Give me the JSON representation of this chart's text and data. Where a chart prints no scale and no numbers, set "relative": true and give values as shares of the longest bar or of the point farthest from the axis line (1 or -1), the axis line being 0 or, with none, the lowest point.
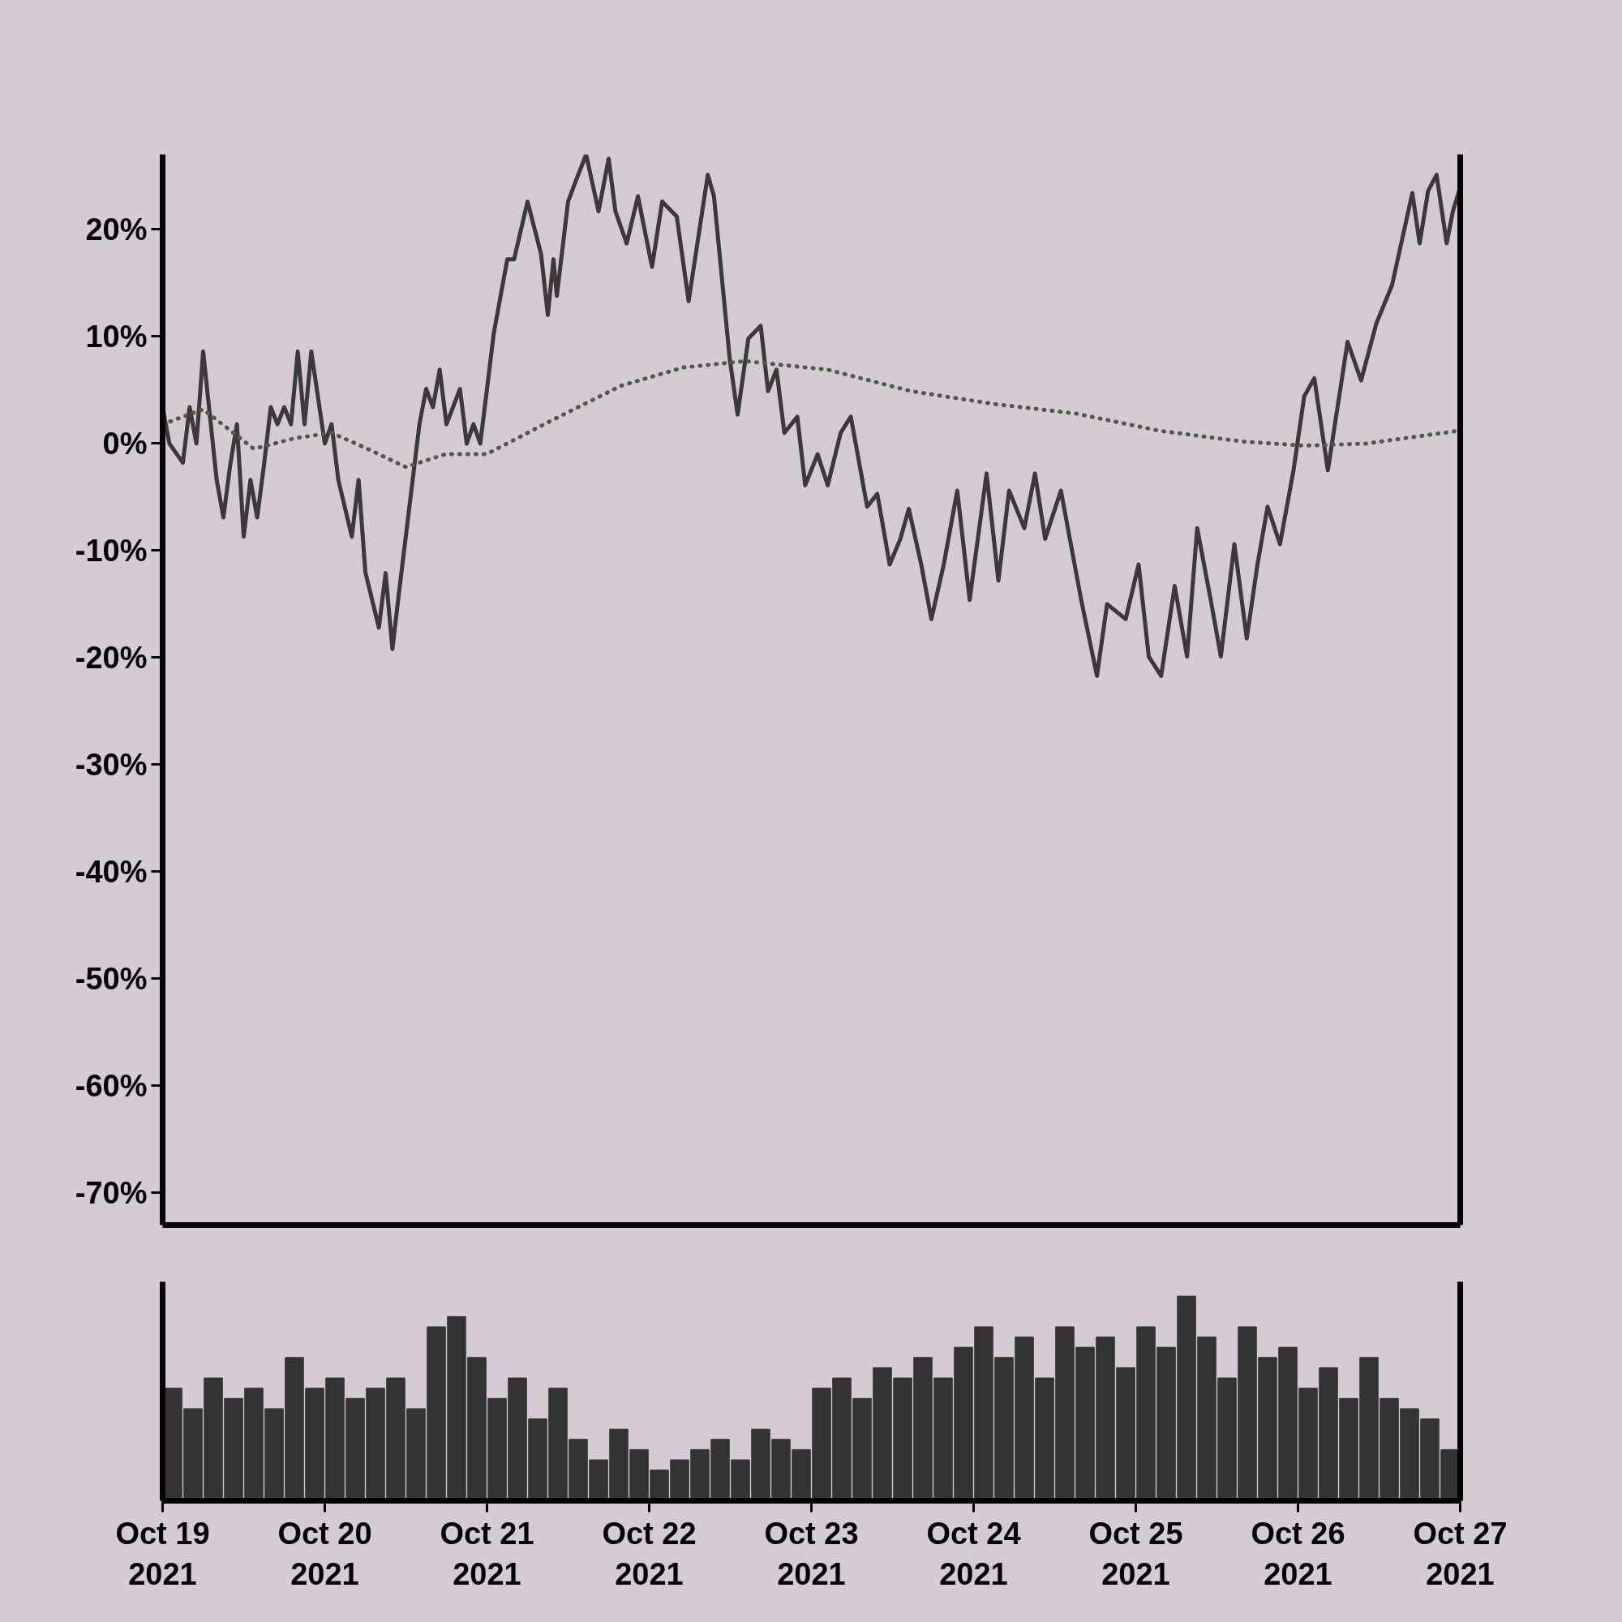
{
  "chart_data": [
    {
      "type": "line",
      "xlim": [
        "2021-10-19",
        "2021-10-27"
      ],
      "ylim": [
        -73,
        27
      ],
      "yticks": [
        {
          "value": 20,
          "label": "20%"
        },
        {
          "value": 10,
          "label": "10%"
        },
        {
          "value": 0,
          "label": "0%"
        },
        {
          "value": -10,
          "label": "-10%"
        },
        {
          "value": -20,
          "label": "-20%"
        },
        {
          "value": -30,
          "label": "-30%"
        },
        {
          "value": -40,
          "label": "-40%"
        },
        {
          "value": -50,
          "label": "-50%"
        },
        {
          "value": -60,
          "label": "-60%"
        },
        {
          "value": -70,
          "label": "-70%"
        }
      ],
      "tick_labels": "y",
      "grid": false,
      "series": [
        {
          "color": "#3a3a3a",
          "line_style": "solid",
          "x": [
            "2021-10-19T00:00",
            "2021-10-19T01:00",
            "2021-10-19T03:00",
            "2021-10-19T04:00",
            "2021-10-19T05:00",
            "2021-10-19T06:00",
            "2021-10-19T08:00",
            "2021-10-19T09:00",
            "2021-10-19T10:00",
            "2021-10-19T11:00",
            "2021-10-19T12:00",
            "2021-10-19T13:00",
            "2021-10-19T14:00",
            "2021-10-19T15:00",
            "2021-10-19T16:00",
            "2021-10-19T17:00",
            "2021-10-19T18:00",
            "2021-10-19T19:00",
            "2021-10-19T20:00",
            "2021-10-19T21:00",
            "2021-10-19T22:00",
            "2021-10-20T00:00",
            "2021-10-20T01:00",
            "2021-10-20T02:00",
            "2021-10-20T04:00",
            "2021-10-20T05:00",
            "2021-10-20T06:00",
            "2021-10-20T08:00",
            "2021-10-20T09:00",
            "2021-10-20T10:00",
            "2021-10-20T11:00",
            "2021-10-20T14:00",
            "2021-10-20T15:00",
            "2021-10-20T16:00",
            "2021-10-20T17:00",
            "2021-10-20T18:00",
            "2021-10-20T20:00",
            "2021-10-20T21:00",
            "2021-10-20T22:00",
            "2021-10-20T23:00",
            "2021-10-21T00:00",
            "2021-10-21T01:00",
            "2021-10-21T03:00",
            "2021-10-21T04:00",
            "2021-10-21T06:00",
            "2021-10-21T08:00",
            "2021-10-21T09:00",
            "2021-10-21T09:50",
            "2021-10-21T10:20",
            "2021-10-21T12:00",
            "2021-10-21T13:00",
            "2021-10-21T14:40",
            "2021-10-21T16:30",
            "2021-10-21T18:00",
            "2021-10-21T19:00",
            "2021-10-21T20:40",
            "2021-10-21T22:20",
            "2021-10-22T00:25",
            "2021-10-22T01:55",
            "2021-10-22T04:05",
            "2021-10-22T05:50",
            "2021-10-22T08:40",
            "2021-10-22T09:35",
            "2021-10-22T11:55",
            "2021-10-22T13:05",
            "2021-10-22T14:40",
            "2021-10-22T16:30",
            "2021-10-22T17:35",
            "2021-10-22T18:50",
            "2021-10-22T20:00",
            "2021-10-22T21:55",
            "2021-10-22T23:05",
            "2021-10-23T00:55",
            "2021-10-23T02:25",
            "2021-10-23T04:20",
            "2021-10-23T05:50",
            "2021-10-23T08:15",
            "2021-10-23T09:45",
            "2021-10-23T11:35",
            "2021-10-23T13:10",
            "2021-10-23T14:25",
            "2021-10-23T16:15",
            "2021-10-23T17:45",
            "2021-10-23T19:35",
            "2021-10-23T21:35",
            "2021-10-23T23:25",
            "2021-10-24T01:55",
            "2021-10-24T03:40",
            "2021-10-24T05:15",
            "2021-10-24T07:30",
            "2021-10-24T09:05",
            "2021-10-24T10:35",
            "2021-10-24T12:55",
            "2021-10-24T15:55",
            "2021-10-24T18:15",
            "2021-10-24T19:45",
            "2021-10-24T22:30",
            "2021-10-25T00:25",
            "2021-10-25T01:55",
            "2021-10-25T03:45",
            "2021-10-25T05:45",
            "2021-10-25T07:35",
            "2021-10-25T09:05",
            "2021-10-25T11:05",
            "2021-10-25T12:35",
            "2021-10-25T14:35",
            "2021-10-25T16:25",
            "2021-10-25T18:00",
            "2021-10-25T19:30",
            "2021-10-25T21:20",
            "2021-10-25T23:20",
            "2021-10-26T00:55",
            "2021-10-26T02:25",
            "2021-10-26T04:25",
            "2021-10-26T07:20",
            "2021-10-26T09:20",
            "2021-10-26T11:35",
            "2021-10-26T13:55",
            "2021-10-26T16:55",
            "2021-10-26T18:00",
            "2021-10-26T19:15",
            "2021-10-26T20:30",
            "2021-10-26T22:00",
            "2021-10-26T22:55",
            "2021-10-26T23:50"
          ],
          "values": [
            3.4,
            0,
            -1.8,
            3.4,
            0,
            8.6,
            -3.4,
            -6.9,
            -2,
            1.8,
            -8.7,
            -3.4,
            -6.9,
            -2,
            3.4,
            1.8,
            3.4,
            1.8,
            8.6,
            1.8,
            8.6,
            0,
            1.8,
            -3.4,
            -8.7,
            -3.4,
            -12,
            -17.2,
            -12.1,
            -19.2,
            -13.8,
            1.8,
            5.1,
            3.4,
            6.9,
            1.8,
            5.1,
            0,
            1.8,
            0,
            5.1,
            10.3,
            17.2,
            17.2,
            22.6,
            17.7,
            12,
            17.2,
            13.8,
            22.6,
            24.3,
            27,
            21.7,
            26.6,
            21.7,
            18.7,
            23.1,
            16.5,
            22.6,
            21.2,
            13.3,
            25.1,
            23.1,
            7.9,
            2.7,
            9.8,
            11,
            4.9,
            6.9,
            1,
            2.5,
            -3.9,
            -1,
            -3.9,
            1,
            2.5,
            -5.9,
            -4.7,
            -11.3,
            -8.9,
            -6.1,
            -11.3,
            -16.4,
            -11.3,
            -4.4,
            -14.6,
            -2.8,
            -12.8,
            -4.4,
            -7.9,
            -2.8,
            -8.9,
            -4.4,
            -14.6,
            -21.7,
            -15,
            -16.4,
            -11.3,
            -19.9,
            -21.7,
            -13.3,
            -19.9,
            -7.9,
            -14.6,
            -19.9,
            -9.4,
            -18.2,
            -11.3,
            -5.9,
            -9.4,
            -2.5,
            4.4,
            6.1,
            -2.5,
            9.5,
            5.9,
            11.2,
            14.8,
            23.4,
            18.7,
            23.6,
            25.1,
            18.7,
            21.7,
            23.6
          ]
        },
        {
          "color": "#4b5e45",
          "line_style": "dotted",
          "x": [
            "2021-10-19T00:00",
            "2021-10-19T06:00",
            "2021-10-19T13:30",
            "2021-10-19T19:35",
            "2021-10-20T01:00",
            "2021-10-20T06:20",
            "2021-10-20T12:00",
            "2021-10-20T17:50",
            "2021-10-20T23:55",
            "2021-10-21T09:05",
            "2021-10-21T19:50",
            "2021-10-22T05:00",
            "2021-10-22T14:10",
            "2021-10-23T02:25",
            "2021-10-23T14:40",
            "2021-10-24T02:55",
            "2021-10-24T15:10",
            "2021-10-25T03:25",
            "2021-10-25T15:40",
            "2021-10-26T00:55",
            "2021-10-26T10:05",
            "2021-10-26T19:15",
            "2021-10-26T23:50"
          ],
          "values": [
            1.8,
            3.2,
            -0.5,
            0.5,
            1,
            -0.5,
            -2.2,
            -1,
            -1,
            2,
            5.4,
            7.1,
            7.7,
            6.9,
            4.9,
            3.7,
            2.8,
            1.2,
            0.2,
            -0.2,
            0,
            0.8,
            1.2
          ]
        }
      ]
    },
    {
      "type": "bar",
      "relative": true,
      "xlim": [
        "2021-10-19",
        "2021-10-27"
      ],
      "xticks": [
        {
          "value": "2021-10-19",
          "label": "Oct 19\n2021"
        },
        {
          "value": "2021-10-20",
          "label": "Oct 20\n2021"
        },
        {
          "value": "2021-10-21",
          "label": "Oct 21\n2021"
        },
        {
          "value": "2021-10-22",
          "label": "Oct 22\n2021"
        },
        {
          "value": "2021-10-23",
          "label": "Oct 23\n2021"
        },
        {
          "value": "2021-10-24",
          "label": "Oct 24\n2021"
        },
        {
          "value": "2021-10-25",
          "label": "Oct 25\n2021"
        },
        {
          "value": "2021-10-26",
          "label": "Oct 26\n2021"
        },
        {
          "value": "2021-10-27",
          "label": "Oct 27\n2021"
        }
      ],
      "tick_labels": "x",
      "grid": false,
      "series": [
        {
          "color": "#333333",
          "x": [
            "2021-10-19T01:30",
            "2021-10-19T04:30",
            "2021-10-19T07:30",
            "2021-10-19T10:30",
            "2021-10-19T13:30",
            "2021-10-19T16:30",
            "2021-10-19T19:30",
            "2021-10-19T22:30",
            "2021-10-20T01:30",
            "2021-10-20T04:30",
            "2021-10-20T07:30",
            "2021-10-20T10:30",
            "2021-10-20T13:30",
            "2021-10-20T16:30",
            "2021-10-20T19:30",
            "2021-10-20T22:30",
            "2021-10-21T01:30",
            "2021-10-21T04:30",
            "2021-10-21T07:30",
            "2021-10-21T10:30",
            "2021-10-21T13:30",
            "2021-10-21T16:30",
            "2021-10-21T19:30",
            "2021-10-21T22:30",
            "2021-10-22T01:30",
            "2021-10-22T04:30",
            "2021-10-22T07:30",
            "2021-10-22T10:30",
            "2021-10-22T13:30",
            "2021-10-22T16:30",
            "2021-10-22T19:30",
            "2021-10-22T22:30",
            "2021-10-23T01:30",
            "2021-10-23T04:30",
            "2021-10-23T07:30",
            "2021-10-23T10:30",
            "2021-10-23T13:30",
            "2021-10-23T16:30",
            "2021-10-23T19:30",
            "2021-10-23T22:30",
            "2021-10-24T01:30",
            "2021-10-24T04:30",
            "2021-10-24T07:30",
            "2021-10-24T10:30",
            "2021-10-24T13:30",
            "2021-10-24T16:30",
            "2021-10-24T19:30",
            "2021-10-24T22:30",
            "2021-10-25T01:30",
            "2021-10-25T04:30",
            "2021-10-25T07:30",
            "2021-10-25T10:30",
            "2021-10-25T13:30",
            "2021-10-25T16:30",
            "2021-10-25T19:30",
            "2021-10-25T22:30",
            "2021-10-26T01:30",
            "2021-10-26T04:30",
            "2021-10-26T07:30",
            "2021-10-26T10:30",
            "2021-10-26T13:30",
            "2021-10-26T16:30",
            "2021-10-26T19:30",
            "2021-10-26T22:30"
          ],
          "values": [
            0.55,
            0.45,
            0.6,
            0.5,
            0.55,
            0.45,
            0.7,
            0.55,
            0.6,
            0.5,
            0.55,
            0.6,
            0.45,
            0.85,
            0.9,
            0.7,
            0.5,
            0.6,
            0.4,
            0.55,
            0.3,
            0.2,
            0.35,
            0.25,
            0.15,
            0.2,
            0.25,
            0.3,
            0.2,
            0.35,
            0.3,
            0.25,
            0.55,
            0.6,
            0.5,
            0.65,
            0.6,
            0.7,
            0.6,
            0.75,
            0.85,
            0.7,
            0.8,
            0.6,
            0.85,
            0.75,
            0.8,
            0.65,
            0.85,
            0.75,
            1.0,
            0.8,
            0.6,
            0.85,
            0.7,
            0.75,
            0.55,
            0.65,
            0.5,
            0.7,
            0.5,
            0.45,
            0.4,
            0.25
          ]
        }
      ]
    }
  ]
}
